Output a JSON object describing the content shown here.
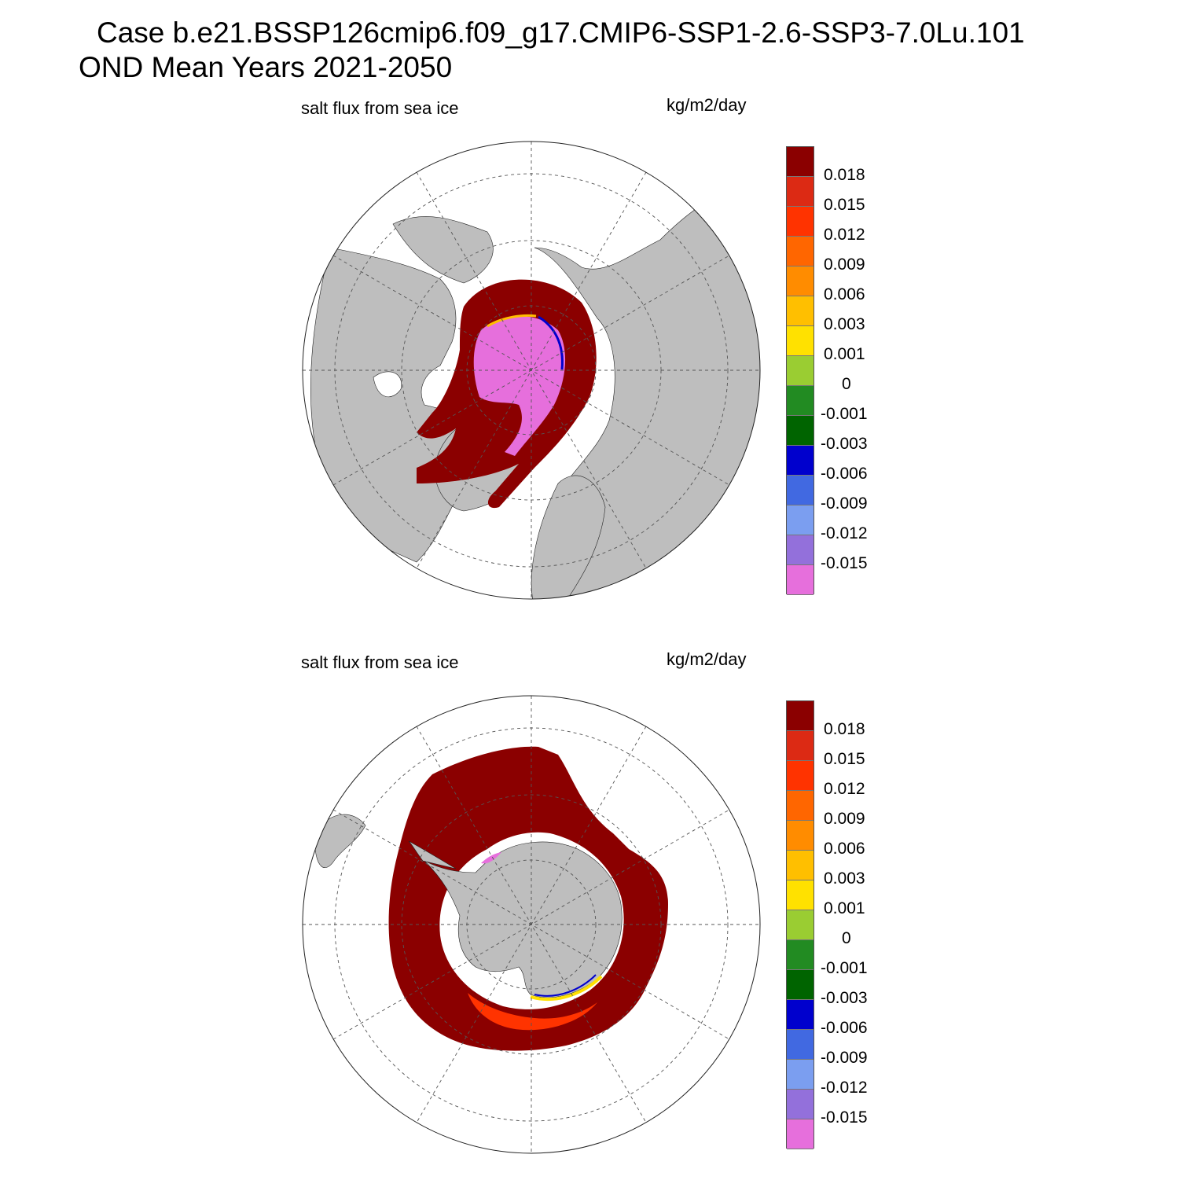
{
  "title": {
    "line1": "Case b.e21.BSSP126cmip6.f09_g17.CMIP6-SSP1-2.6-SSP3-7.0Lu.101",
    "line2": "OND Mean   Years 2021-2050"
  },
  "panels": [
    {
      "hemisphere": "north",
      "variable_label": "salt flux from sea ice",
      "units_label": "kg/m2/day"
    },
    {
      "hemisphere": "south",
      "variable_label": "salt flux from sea ice",
      "units_label": "kg/m2/day"
    }
  ],
  "colorbar": {
    "tick_labels": [
      "0.018",
      "0.015",
      "0.012",
      "0.009",
      "0.006",
      "0.003",
      "0.001",
      "0",
      "-0.001",
      "-0.003",
      "-0.006",
      "-0.009",
      "-0.012",
      "-0.015"
    ],
    "colors_top_to_bottom": [
      "#8b0000",
      "#dc2a14",
      "#ff3300",
      "#ff6600",
      "#ff8c00",
      "#ffbf00",
      "#ffe100",
      "#9acd32",
      "#228b22",
      "#006400",
      "#0000cd",
      "#4169e1",
      "#7b9ef0",
      "#9370db",
      "#e66fdc"
    ]
  },
  "colors": {
    "land": "#bebebe",
    "ocean_no_ice": "#ffffff",
    "grid": "#555555"
  }
}
